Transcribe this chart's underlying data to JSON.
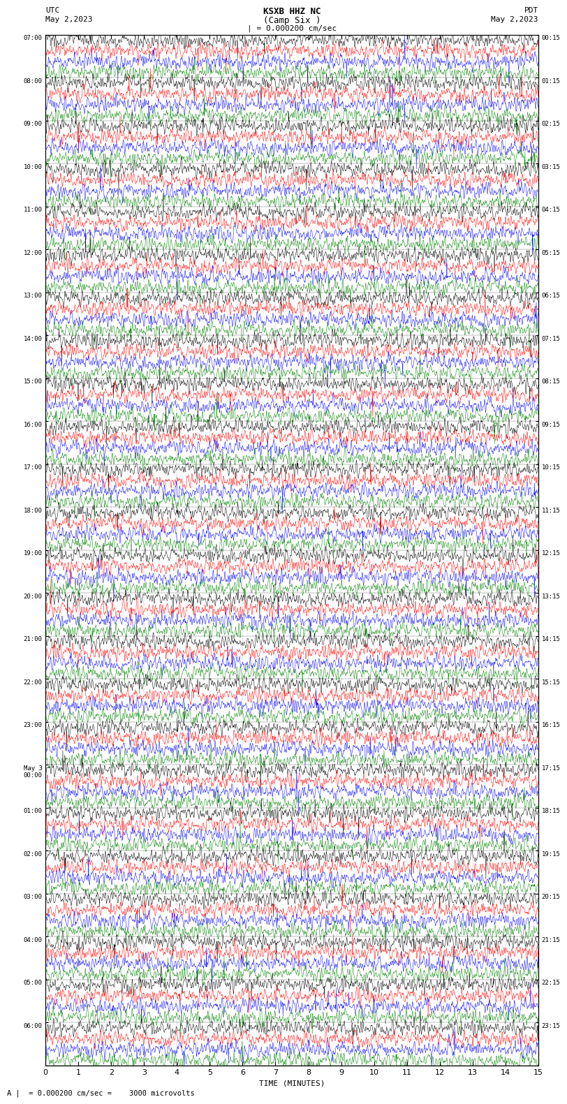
{
  "title_line1": "KSXB HHZ NC",
  "title_line2": "(Camp Six )",
  "scale_text": "| = 0.000200 cm/sec",
  "left_date1": "UTC",
  "left_date2": "May 2,2023",
  "right_date1": "PDT",
  "right_date2": "May 2,2023",
  "xlabel": "TIME (MINUTES)",
  "bottom_legend": "A |  = 0.000200 cm/sec =    3000 microvolts",
  "left_times": [
    "07:00",
    "08:00",
    "09:00",
    "10:00",
    "11:00",
    "12:00",
    "13:00",
    "14:00",
    "15:00",
    "16:00",
    "17:00",
    "18:00",
    "19:00",
    "20:00",
    "21:00",
    "22:00",
    "23:00",
    "May 3\n00:00",
    "01:00",
    "02:00",
    "03:00",
    "04:00",
    "05:00",
    "06:00"
  ],
  "right_times": [
    "00:15",
    "01:15",
    "02:15",
    "03:15",
    "04:15",
    "05:15",
    "06:15",
    "07:15",
    "08:15",
    "09:15",
    "10:15",
    "11:15",
    "12:15",
    "13:15",
    "14:15",
    "15:15",
    "16:15",
    "17:15",
    "18:15",
    "19:15",
    "20:15",
    "21:15",
    "22:15",
    "23:15"
  ],
  "n_rows": 24,
  "n_subrows": 4,
  "colors": [
    "black",
    "red",
    "blue",
    "green"
  ],
  "fig_width": 8.5,
  "fig_height": 16.13,
  "noise_amplitude": 0.08,
  "spike_prob": 0.003,
  "spike_amplitude": 0.35
}
